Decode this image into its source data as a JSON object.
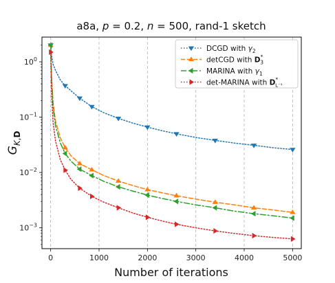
{
  "chart_data": {
    "type": "line",
    "title": "a8a, p = 0.2, n = 500, rand-1 sketch",
    "xlabel": "Number of iterations",
    "ylabel": "G_{K,D}",
    "xlim": [
      -180,
      5180
    ],
    "ylim": [
      0.00042,
      2.8
    ],
    "yscale": "log",
    "xticks": [
      0,
      1000,
      2000,
      3000,
      4000,
      5000
    ],
    "yticks": [
      0.001,
      0.01,
      0.1,
      1
    ],
    "grid": "vertical-dashed",
    "legend_position": "top-right",
    "series": [
      {
        "name": "DCGD with γ2",
        "color": "#1f77b4",
        "linestyle": "dotted",
        "marker": "tri-down",
        "x": [
          0,
          20,
          50,
          100,
          200,
          300,
          420,
          600,
          850,
          1100,
          1400,
          1700,
          2000,
          2300,
          2600,
          3000,
          3400,
          3800,
          4200,
          4600,
          5000
        ],
        "y": [
          2.0,
          1.3,
          0.9,
          0.7,
          0.47,
          0.37,
          0.3,
          0.22,
          0.155,
          0.12,
          0.095,
          0.078,
          0.066,
          0.057,
          0.05,
          0.043,
          0.038,
          0.034,
          0.031,
          0.028,
          0.026
        ]
      },
      {
        "name": "detCGD with D3*",
        "color": "#ff7f0e",
        "linestyle": "dashed",
        "marker": "tri-up",
        "x": [
          0,
          20,
          50,
          100,
          200,
          300,
          420,
          600,
          850,
          1100,
          1400,
          1700,
          2000,
          2300,
          2600,
          3000,
          3400,
          3800,
          4200,
          4600,
          5000
        ],
        "y": [
          2.0,
          0.5,
          0.18,
          0.085,
          0.042,
          0.028,
          0.02,
          0.0145,
          0.0112,
          0.0088,
          0.007,
          0.0058,
          0.0049,
          0.0043,
          0.0038,
          0.0033,
          0.0029,
          0.0026,
          0.0023,
          0.0021,
          0.0019
        ]
      },
      {
        "name": "MARINA with γ1",
        "color": "#2ca02c",
        "linestyle": "dashdot",
        "marker": "tri-left",
        "x": [
          0,
          20,
          50,
          100,
          200,
          300,
          420,
          600,
          850,
          1100,
          1400,
          1700,
          2000,
          2300,
          2600,
          3000,
          3400,
          3800,
          4200,
          4600,
          5000
        ],
        "y": [
          2.0,
          0.45,
          0.15,
          0.07,
          0.034,
          0.022,
          0.016,
          0.0115,
          0.0088,
          0.0069,
          0.0055,
          0.0046,
          0.0039,
          0.0034,
          0.003,
          0.0026,
          0.0023,
          0.002,
          0.0018,
          0.00165,
          0.0015
        ]
      },
      {
        "name": "det-MARINA with D_{L^{-1}}*",
        "color": "#d62728",
        "linestyle": "dotted",
        "marker": "tri-right",
        "x": [
          0,
          20,
          50,
          100,
          200,
          300,
          420,
          600,
          850,
          1100,
          1400,
          1700,
          2000,
          2300,
          2600,
          3000,
          3400,
          3800,
          4200,
          4600,
          5000
        ],
        "y": [
          1.5,
          0.25,
          0.08,
          0.037,
          0.017,
          0.011,
          0.0075,
          0.0052,
          0.0037,
          0.0029,
          0.0023,
          0.00185,
          0.00155,
          0.00133,
          0.00116,
          0.001,
          0.00088,
          0.00079,
          0.00072,
          0.00067,
          0.00063
        ]
      }
    ]
  }
}
